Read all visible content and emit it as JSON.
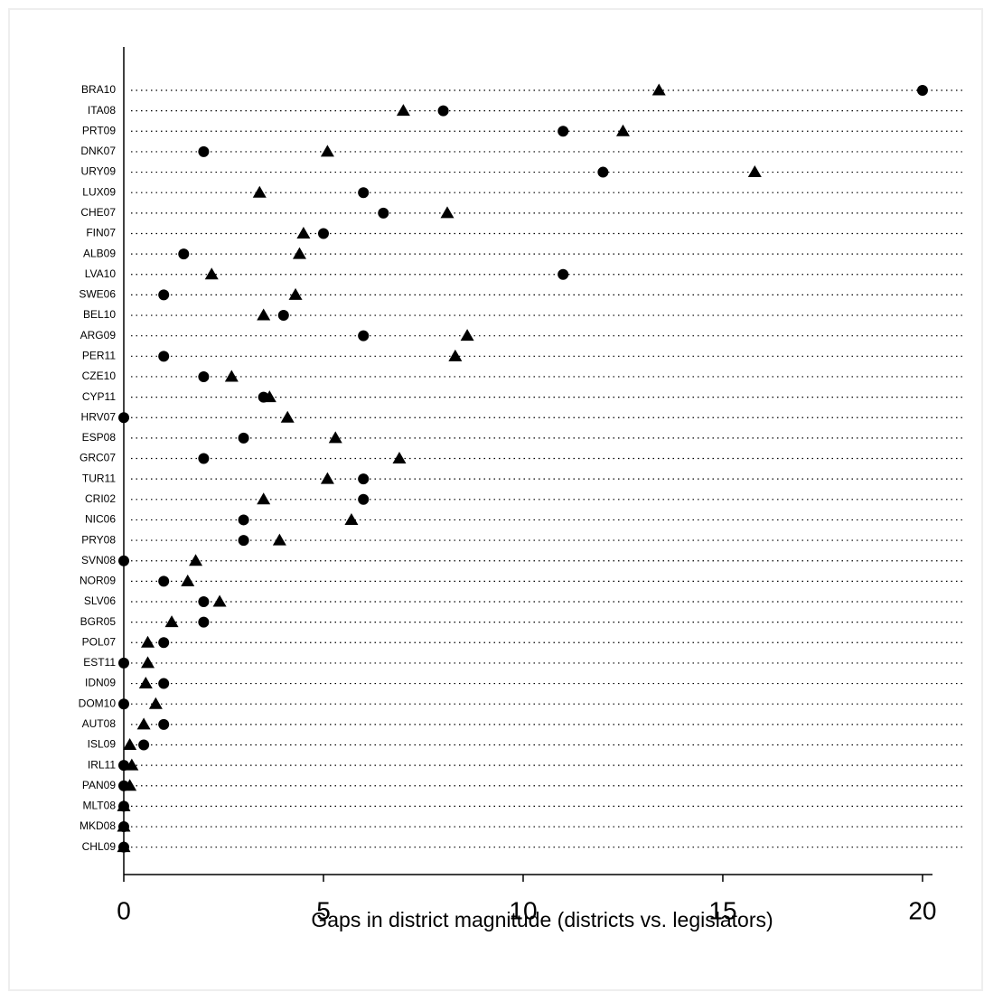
{
  "chart_data": {
    "type": "dot",
    "x_label": "Gaps in district magnitude (districts vs. legislators)",
    "categories": [
      "BRA10",
      "ITA08",
      "PRT09",
      "DNK07",
      "URY09",
      "LUX09",
      "CHE07",
      "FIN07",
      "ALB09",
      "LVA10",
      "SWE06",
      "BEL10",
      "ARG09",
      "PER11",
      "CZE10",
      "CYP11",
      "HRV07",
      "ESP08",
      "GRC07",
      "TUR11",
      "CRI02",
      "NIC06",
      "PRY08",
      "SVN08",
      "NOR09",
      "SLV06",
      "BGR05",
      "POL07",
      "EST11",
      "IDN09",
      "DOM10",
      "AUT08",
      "ISL09",
      "IRL11",
      "PAN09",
      "MLT08",
      "MKD08",
      "CHL09"
    ],
    "series": [
      {
        "marker": "circle",
        "color": "#000000",
        "values": [
          20,
          8,
          11,
          2,
          12,
          6,
          6.5,
          5,
          1.5,
          11,
          1,
          4,
          6,
          1,
          2,
          3.5,
          0,
          3,
          2,
          6,
          6,
          3,
          3,
          0,
          1,
          2,
          2,
          1,
          0,
          1,
          0,
          1,
          0.5,
          0,
          0,
          0,
          0,
          0
        ]
      },
      {
        "marker": "triangle",
        "color": "#000000",
        "values": [
          13.4,
          7,
          12.5,
          5.1,
          15.8,
          3.4,
          8.1,
          4.5,
          4.4,
          2.2,
          4.3,
          3.5,
          8.6,
          8.3,
          2.7,
          3.65,
          4.1,
          5.3,
          6.9,
          5.1,
          3.5,
          5.7,
          3.9,
          1.8,
          1.6,
          2.4,
          1.2,
          0.6,
          0.6,
          0.55,
          0.8,
          0.5,
          0.15,
          0.2,
          0.15,
          0,
          0,
          0
        ]
      }
    ],
    "xlim": [
      0,
      20.25
    ],
    "xticks": [
      0,
      5,
      10,
      15,
      20
    ],
    "grid": true
  }
}
